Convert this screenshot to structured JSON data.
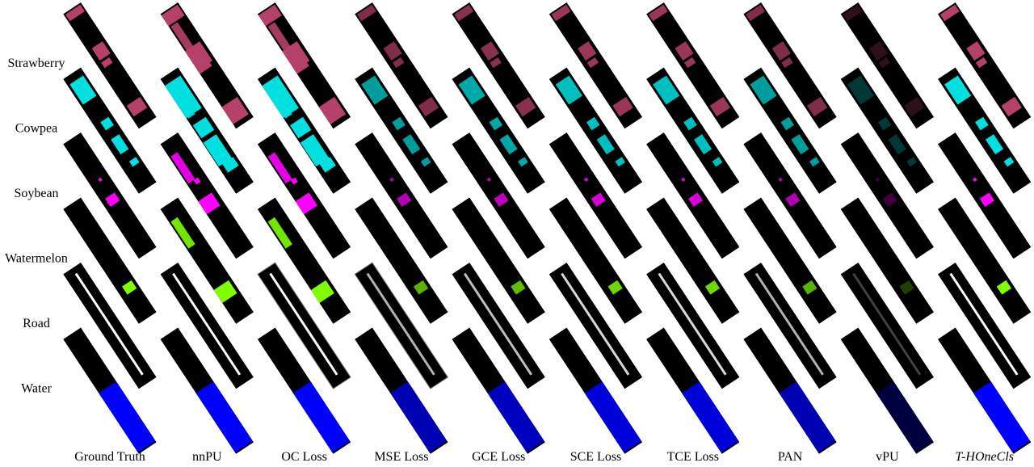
{
  "row_labels": [
    "Strawberry",
    "Cowpea",
    "Soybean",
    "Watermelon",
    "Road",
    "Water"
  ],
  "column_labels": [
    "Ground Truth",
    "nnPU",
    "OC Loss",
    "MSE Loss",
    "GCE Loss",
    "SCE Loss",
    "TCE Loss",
    "PAN",
    "vPU",
    "T-HOneCls"
  ]
}
